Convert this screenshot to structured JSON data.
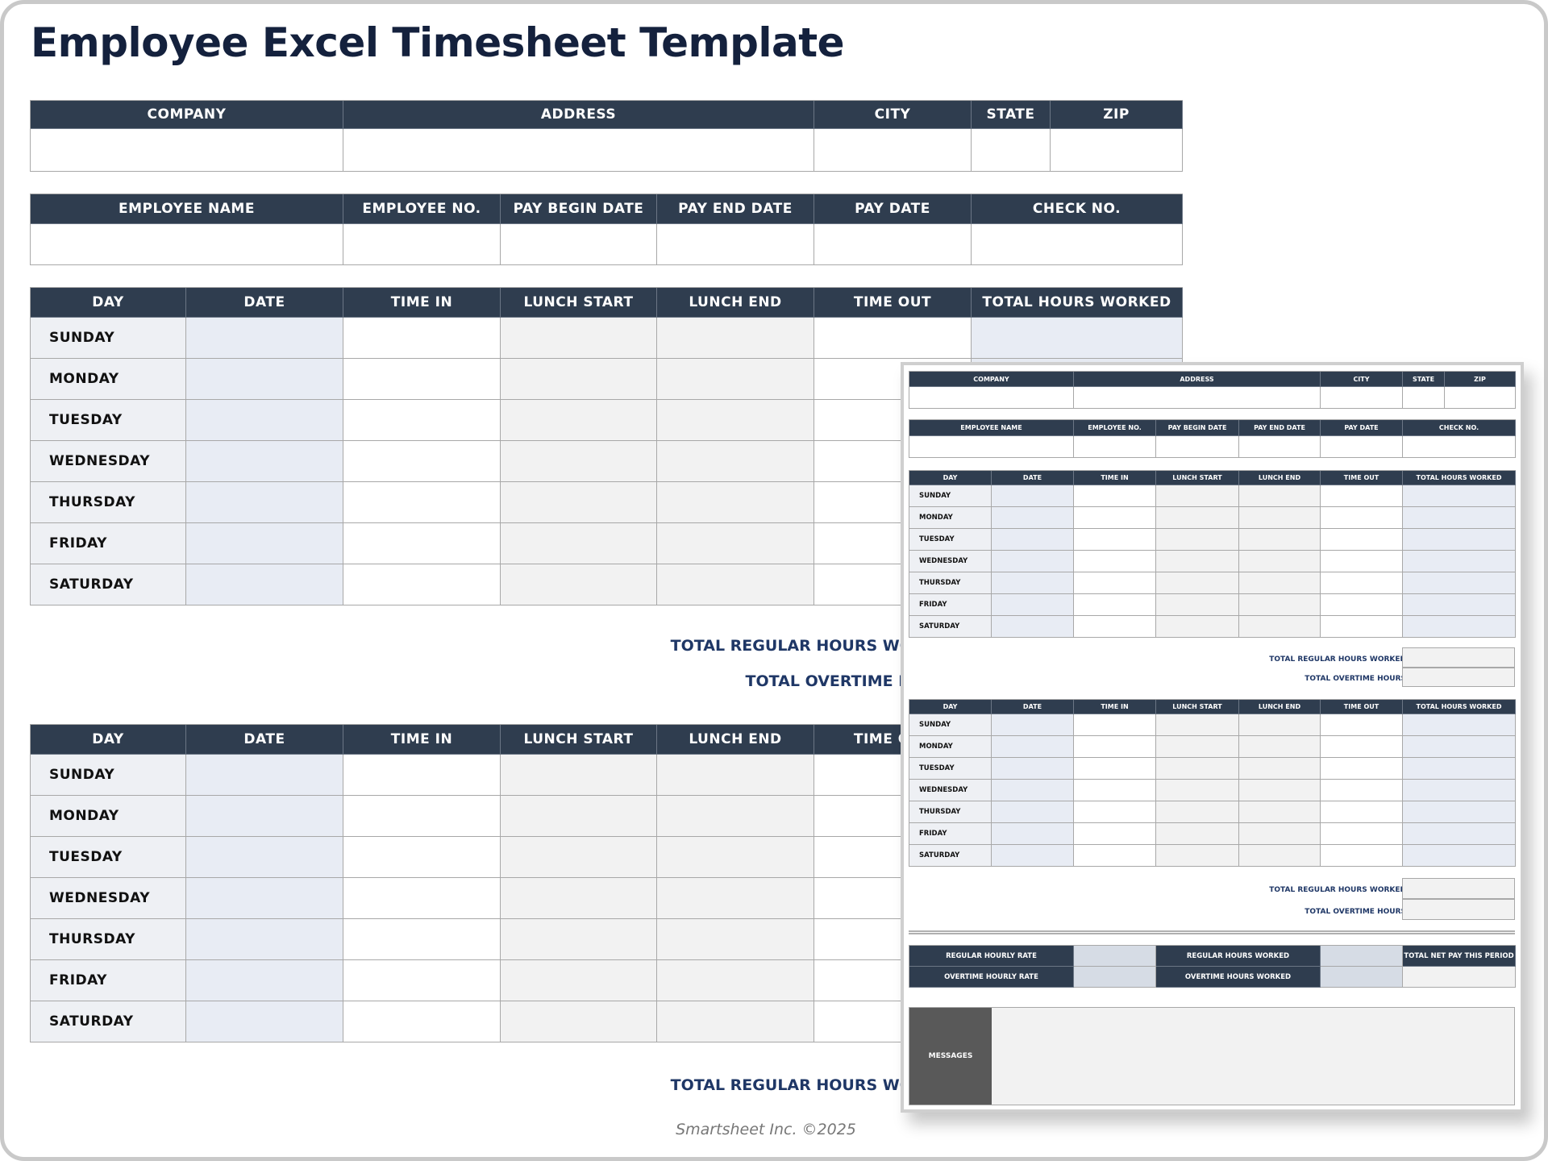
{
  "title": "Employee Excel Timesheet Template",
  "company_table": {
    "headers": [
      "COMPANY",
      "ADDRESS",
      "CITY",
      "STATE",
      "ZIP"
    ]
  },
  "employee_table": {
    "headers": [
      "EMPLOYEE NAME",
      "EMPLOYEE NO.",
      "PAY BEGIN DATE",
      "PAY END DATE",
      "PAY DATE",
      "CHECK NO."
    ]
  },
  "day_table": {
    "headers": [
      "DAY",
      "DATE",
      "TIME IN",
      "LUNCH START",
      "LUNCH END",
      "TIME OUT",
      "TOTAL HOURS WORKED"
    ]
  },
  "days": [
    "SUNDAY",
    "MONDAY",
    "TUESDAY",
    "WEDNESDAY",
    "THURSDAY",
    "FRIDAY",
    "SATURDAY"
  ],
  "totals": {
    "regular": "TOTAL REGULAR HOURS WORKED",
    "overtime": "TOTAL OVERTIME HOURS"
  },
  "pay": {
    "regular_rate": "REGULAR HOURLY RATE",
    "overtime_rate": "OVERTIME HOURLY RATE",
    "regular_hours": "REGULAR HOURS WORKED",
    "overtime_hours": "OVERTIME HOURS WORKED",
    "net_pay": "TOTAL NET PAY THIS PERIOD"
  },
  "messages_label": "MESSAGES",
  "footer": "Smartsheet Inc. ©2025",
  "colors": {
    "header_bg": "#2f3d4f",
    "title": "#14213d",
    "totals_text": "#1f3766",
    "date_fill": "#e8ecf4",
    "lunch_fill": "#f2f2f2"
  }
}
